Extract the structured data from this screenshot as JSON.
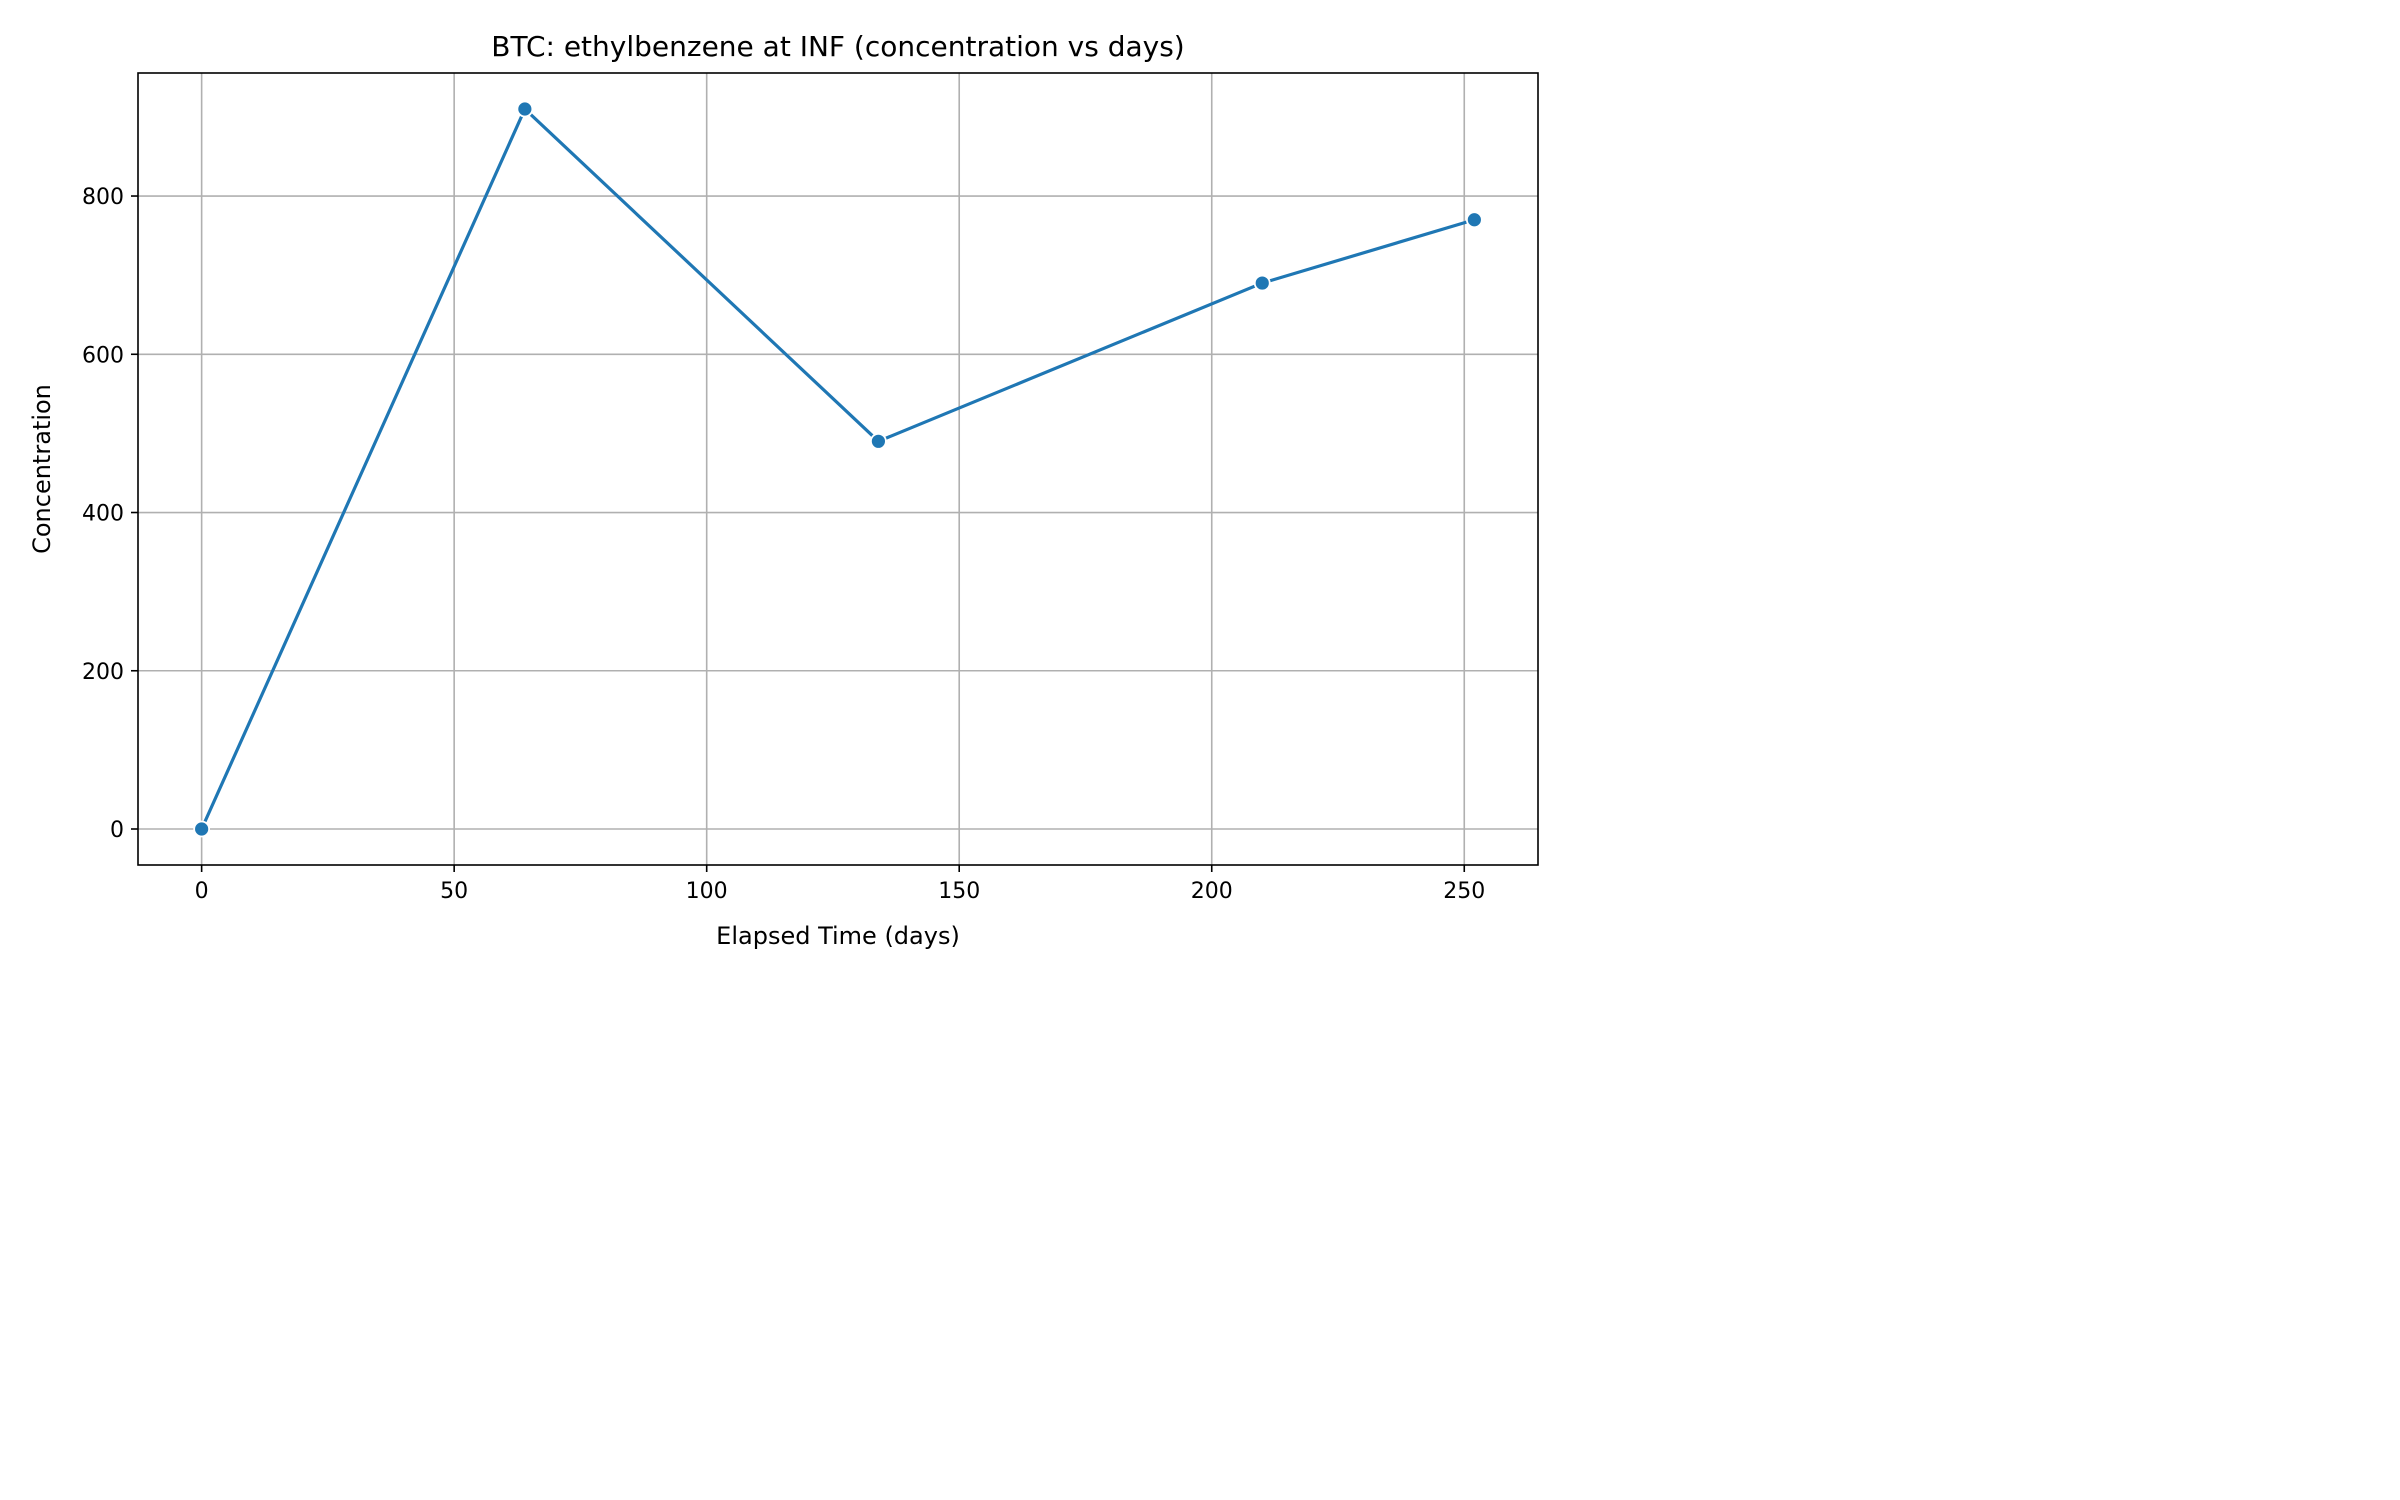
{
  "chart_data": {
    "type": "line",
    "title": "BTC: ethylbenzene at INF (concentration vs days)",
    "xlabel": "Elapsed Time (days)",
    "ylabel": "Concentration",
    "x": [
      0,
      64,
      134,
      210,
      252
    ],
    "series": [
      {
        "values": [
          0,
          910,
          490,
          690,
          770
        ],
        "color": "#1f77b4",
        "marker": "circle"
      }
    ],
    "xlim": [
      -12.6,
      264.6
    ],
    "ylim": [
      -45.5,
      955.5
    ],
    "xticks": [
      0,
      50,
      100,
      150,
      200,
      250
    ],
    "yticks": [
      0,
      200,
      400,
      600,
      800
    ],
    "xtick_labels": [
      "0",
      "50",
      "100",
      "150",
      "200",
      "250"
    ],
    "ytick_labels": [
      "0",
      "200",
      "400",
      "600",
      "800"
    ],
    "grid": true,
    "legend": false
  },
  "colors": {
    "series_line": "#1f77b4",
    "grid": "#b0b0b0",
    "axes_frame": "#000000",
    "background": "#ffffff"
  }
}
